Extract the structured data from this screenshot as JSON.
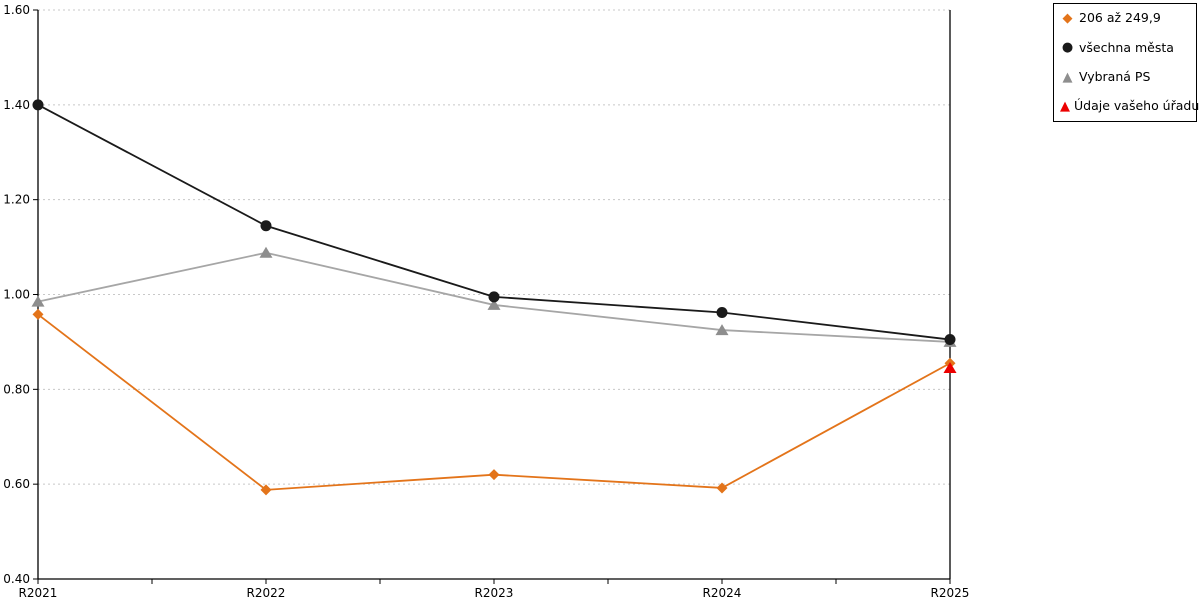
{
  "chart_data": {
    "type": "line",
    "title": "",
    "xlabel": "",
    "ylabel": "",
    "categories": [
      "R2021",
      "R2022",
      "R2023",
      "R2024",
      "R2025"
    ],
    "series": [
      {
        "name": "206 až 249,9",
        "color": "#E3741A",
        "marker": "diamond",
        "values": [
          0.958,
          0.588,
          0.62,
          0.592,
          0.855
        ]
      },
      {
        "name": "všechna města",
        "color": "#1A1A1A",
        "marker": "circle",
        "values": [
          1.4,
          1.145,
          0.995,
          0.962,
          0.905
        ]
      },
      {
        "name": "Vybraná PS",
        "color": "#A6A6A6",
        "marker": "triangle",
        "marker_color": "#8E8E8E",
        "values": [
          0.985,
          1.088,
          0.978,
          0.925,
          0.9
        ]
      },
      {
        "name": "Údaje vašeho úřadu",
        "color": "#EC0000",
        "marker": "triangle",
        "values": [
          null,
          null,
          null,
          null,
          0.845
        ]
      }
    ],
    "ylim": [
      0.4,
      1.6
    ],
    "y_ticks": [
      0.4,
      0.6,
      0.8,
      1.0,
      1.2,
      1.4,
      1.6
    ],
    "y_tick_labels": [
      "0.40",
      "0.60",
      "0.80",
      "1.00",
      "1.20",
      "1.40",
      "1.60"
    ],
    "x_minor_ticks_between_categories": true,
    "grid": "horizontal-dotted",
    "grid_color": "#C8C8C8",
    "axis_color": "#000000",
    "legend_position": "top-right-outside",
    "legend_border_color": "#000000",
    "background_color": "#FFFFFF"
  }
}
